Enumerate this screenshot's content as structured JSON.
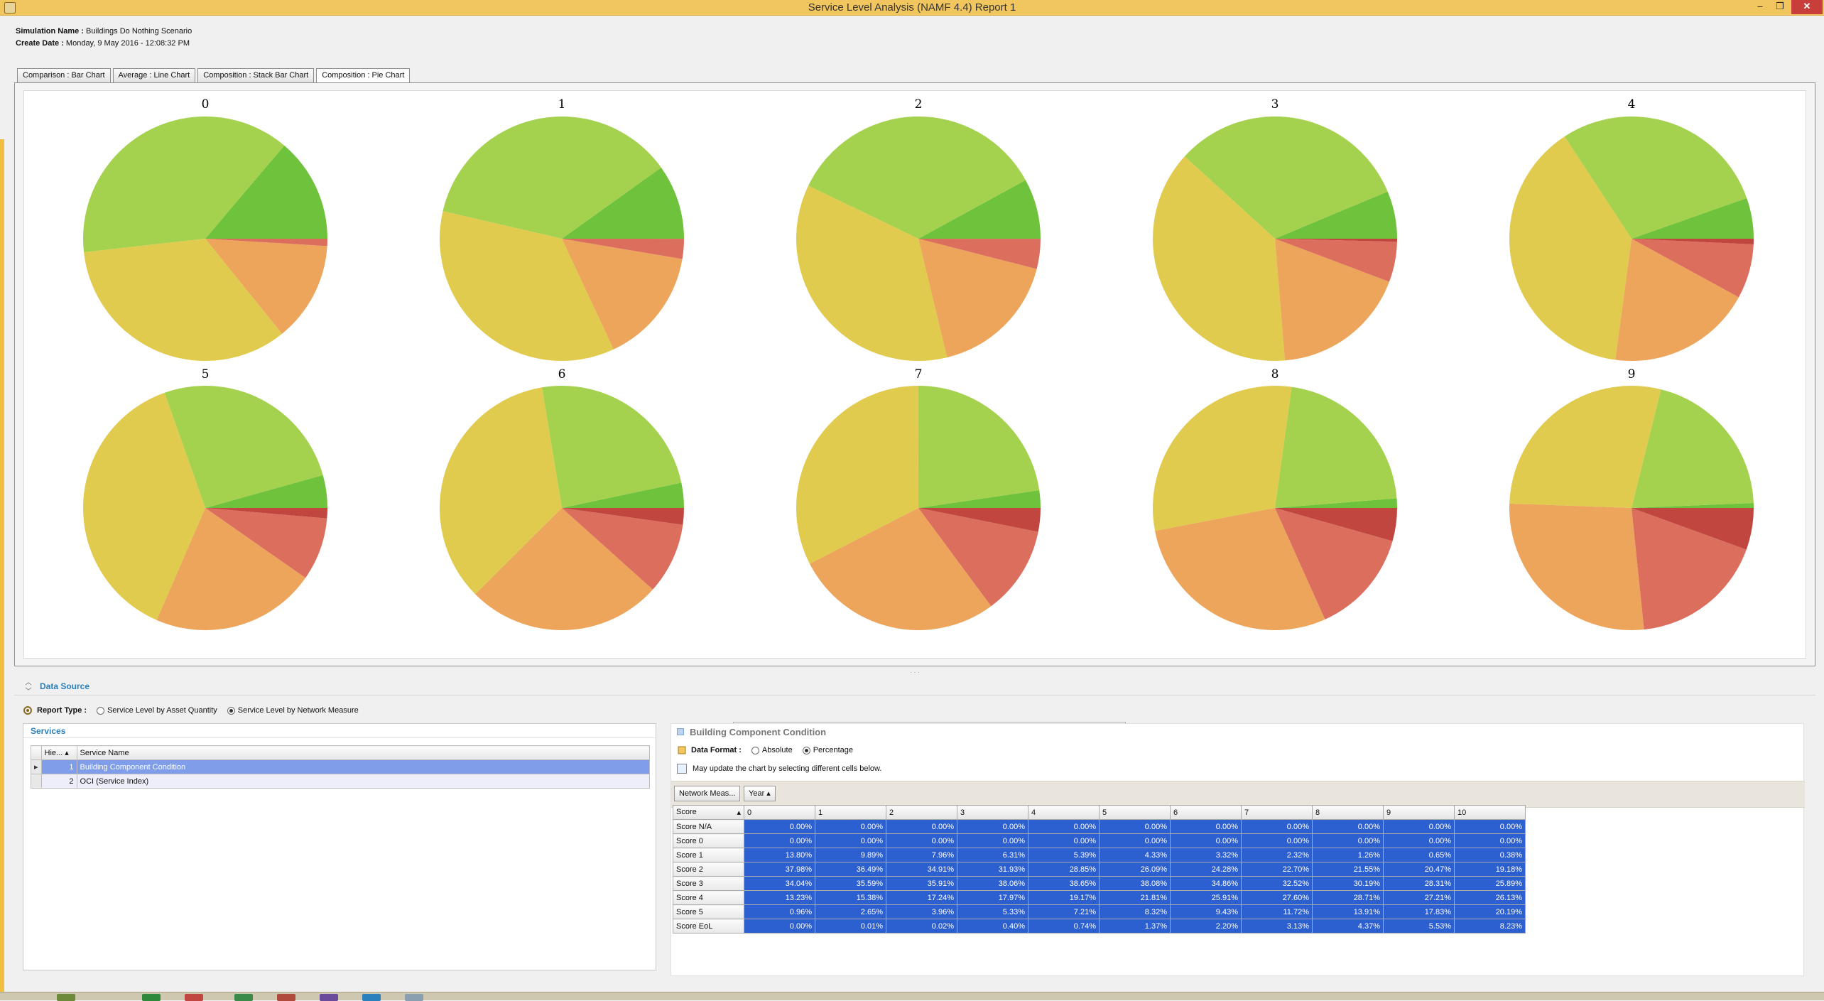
{
  "window": {
    "title": "Service Level Analysis (NAMF 4.4) Report 1",
    "min": "–",
    "max": "❐",
    "close": "✕"
  },
  "info": {
    "sim_label": "Simulation Name :",
    "sim_value": "Buildings Do Nothing Scenario",
    "date_label": "Create Date :",
    "date_value": "Monday, 9 May 2016 - 12:08:32 PM"
  },
  "tabs": [
    "Comparison : Bar Chart",
    "Average : Line Chart",
    "Composition : Stack Bar Chart",
    "Composition : Pie Chart"
  ],
  "active_tab": 3,
  "chart_data": {
    "type": "pie",
    "categories": [
      "Score N/A",
      "Score 0",
      "Score 1",
      "Score 2",
      "Score 3",
      "Score 4",
      "Score 5",
      "Score EoL"
    ],
    "colors": [
      "#a9a9a9",
      "#2f7f32",
      "#6fc23c",
      "#a4d14e",
      "#e0cb4e",
      "#eda55c",
      "#dc6e5e",
      "#c0463f"
    ],
    "pies": [
      {
        "title": "0",
        "values": [
          0,
          0,
          13.8,
          37.98,
          34.04,
          13.23,
          0.96,
          0
        ]
      },
      {
        "title": "1",
        "values": [
          0,
          0,
          9.89,
          36.49,
          35.59,
          15.38,
          2.65,
          0.01
        ]
      },
      {
        "title": "2",
        "values": [
          0,
          0,
          7.96,
          34.91,
          35.91,
          17.24,
          3.96,
          0.02
        ]
      },
      {
        "title": "3",
        "values": [
          0,
          0,
          6.31,
          31.93,
          38.06,
          17.97,
          5.33,
          0.4
        ]
      },
      {
        "title": "4",
        "values": [
          0,
          0,
          5.39,
          28.85,
          38.65,
          19.17,
          7.21,
          0.74
        ]
      },
      {
        "title": "5",
        "values": [
          0,
          0,
          4.33,
          26.09,
          38.08,
          21.81,
          8.32,
          1.37
        ]
      },
      {
        "title": "6",
        "values": [
          0,
          0,
          3.32,
          24.28,
          34.86,
          25.91,
          9.43,
          2.2
        ]
      },
      {
        "title": "7",
        "values": [
          0,
          0,
          2.32,
          22.7,
          32.52,
          27.6,
          11.72,
          3.13
        ]
      },
      {
        "title": "8",
        "values": [
          0,
          0,
          1.26,
          21.55,
          30.19,
          28.71,
          13.91,
          4.37
        ]
      },
      {
        "title": "9",
        "values": [
          0,
          0,
          0.65,
          20.47,
          28.31,
          27.21,
          17.83,
          5.53
        ]
      }
    ],
    "legend_position": "bottom-center"
  },
  "data_source": {
    "title": "Data Source",
    "report_type_label": "Report Type :",
    "options": [
      "Service Level by Asset Quantity",
      "Service Level by Network Measure"
    ],
    "selected": 1
  },
  "services": {
    "title": "Services",
    "col_hier": "Hie...",
    "col_name": "Service Name",
    "rows": [
      {
        "id": "1",
        "name": "Building Component Condition"
      },
      {
        "id": "2",
        "name": "OCI (Service Index)"
      }
    ]
  },
  "condition": {
    "title": "Building Component Condition",
    "format_label": "Data Format :",
    "options": [
      "Absolute",
      "Percentage"
    ],
    "selected": 1,
    "hint": "May update the chart by selecting different cells below.",
    "group1": "Network Meas...",
    "group2": "Year",
    "row_header": "Score"
  },
  "table": {
    "years": [
      "0",
      "1",
      "2",
      "3",
      "4",
      "5",
      "6",
      "7",
      "8",
      "9",
      "10"
    ],
    "rows": [
      {
        "label": "Score N/A",
        "values": [
          "0.00%",
          "0.00%",
          "0.00%",
          "0.00%",
          "0.00%",
          "0.00%",
          "0.00%",
          "0.00%",
          "0.00%",
          "0.00%",
          "0.00%"
        ]
      },
      {
        "label": "Score 0",
        "values": [
          "0.00%",
          "0.00%",
          "0.00%",
          "0.00%",
          "0.00%",
          "0.00%",
          "0.00%",
          "0.00%",
          "0.00%",
          "0.00%",
          "0.00%"
        ]
      },
      {
        "label": "Score 1",
        "values": [
          "13.80%",
          "9.89%",
          "7.96%",
          "6.31%",
          "5.39%",
          "4.33%",
          "3.32%",
          "2.32%",
          "1.26%",
          "0.65%",
          "0.38%"
        ]
      },
      {
        "label": "Score 2",
        "values": [
          "37.98%",
          "36.49%",
          "34.91%",
          "31.93%",
          "28.85%",
          "26.09%",
          "24.28%",
          "22.70%",
          "21.55%",
          "20.47%",
          "19.18%"
        ]
      },
      {
        "label": "Score 3",
        "values": [
          "34.04%",
          "35.59%",
          "35.91%",
          "38.06%",
          "38.65%",
          "38.08%",
          "34.86%",
          "32.52%",
          "30.19%",
          "28.31%",
          "25.89%"
        ]
      },
      {
        "label": "Score 4",
        "values": [
          "13.23%",
          "15.38%",
          "17.24%",
          "17.97%",
          "19.17%",
          "21.81%",
          "25.91%",
          "27.60%",
          "28.71%",
          "27.21%",
          "26.13%"
        ]
      },
      {
        "label": "Score 5",
        "values": [
          "0.96%",
          "2.65%",
          "3.96%",
          "5.33%",
          "7.21%",
          "8.32%",
          "9.43%",
          "11.72%",
          "13.91%",
          "17.83%",
          "20.19%"
        ]
      },
      {
        "label": "Score EoL",
        "values": [
          "0.00%",
          "0.01%",
          "0.02%",
          "0.40%",
          "0.74%",
          "1.37%",
          "2.20%",
          "3.13%",
          "4.37%",
          "5.53%",
          "8.23%"
        ]
      }
    ]
  }
}
